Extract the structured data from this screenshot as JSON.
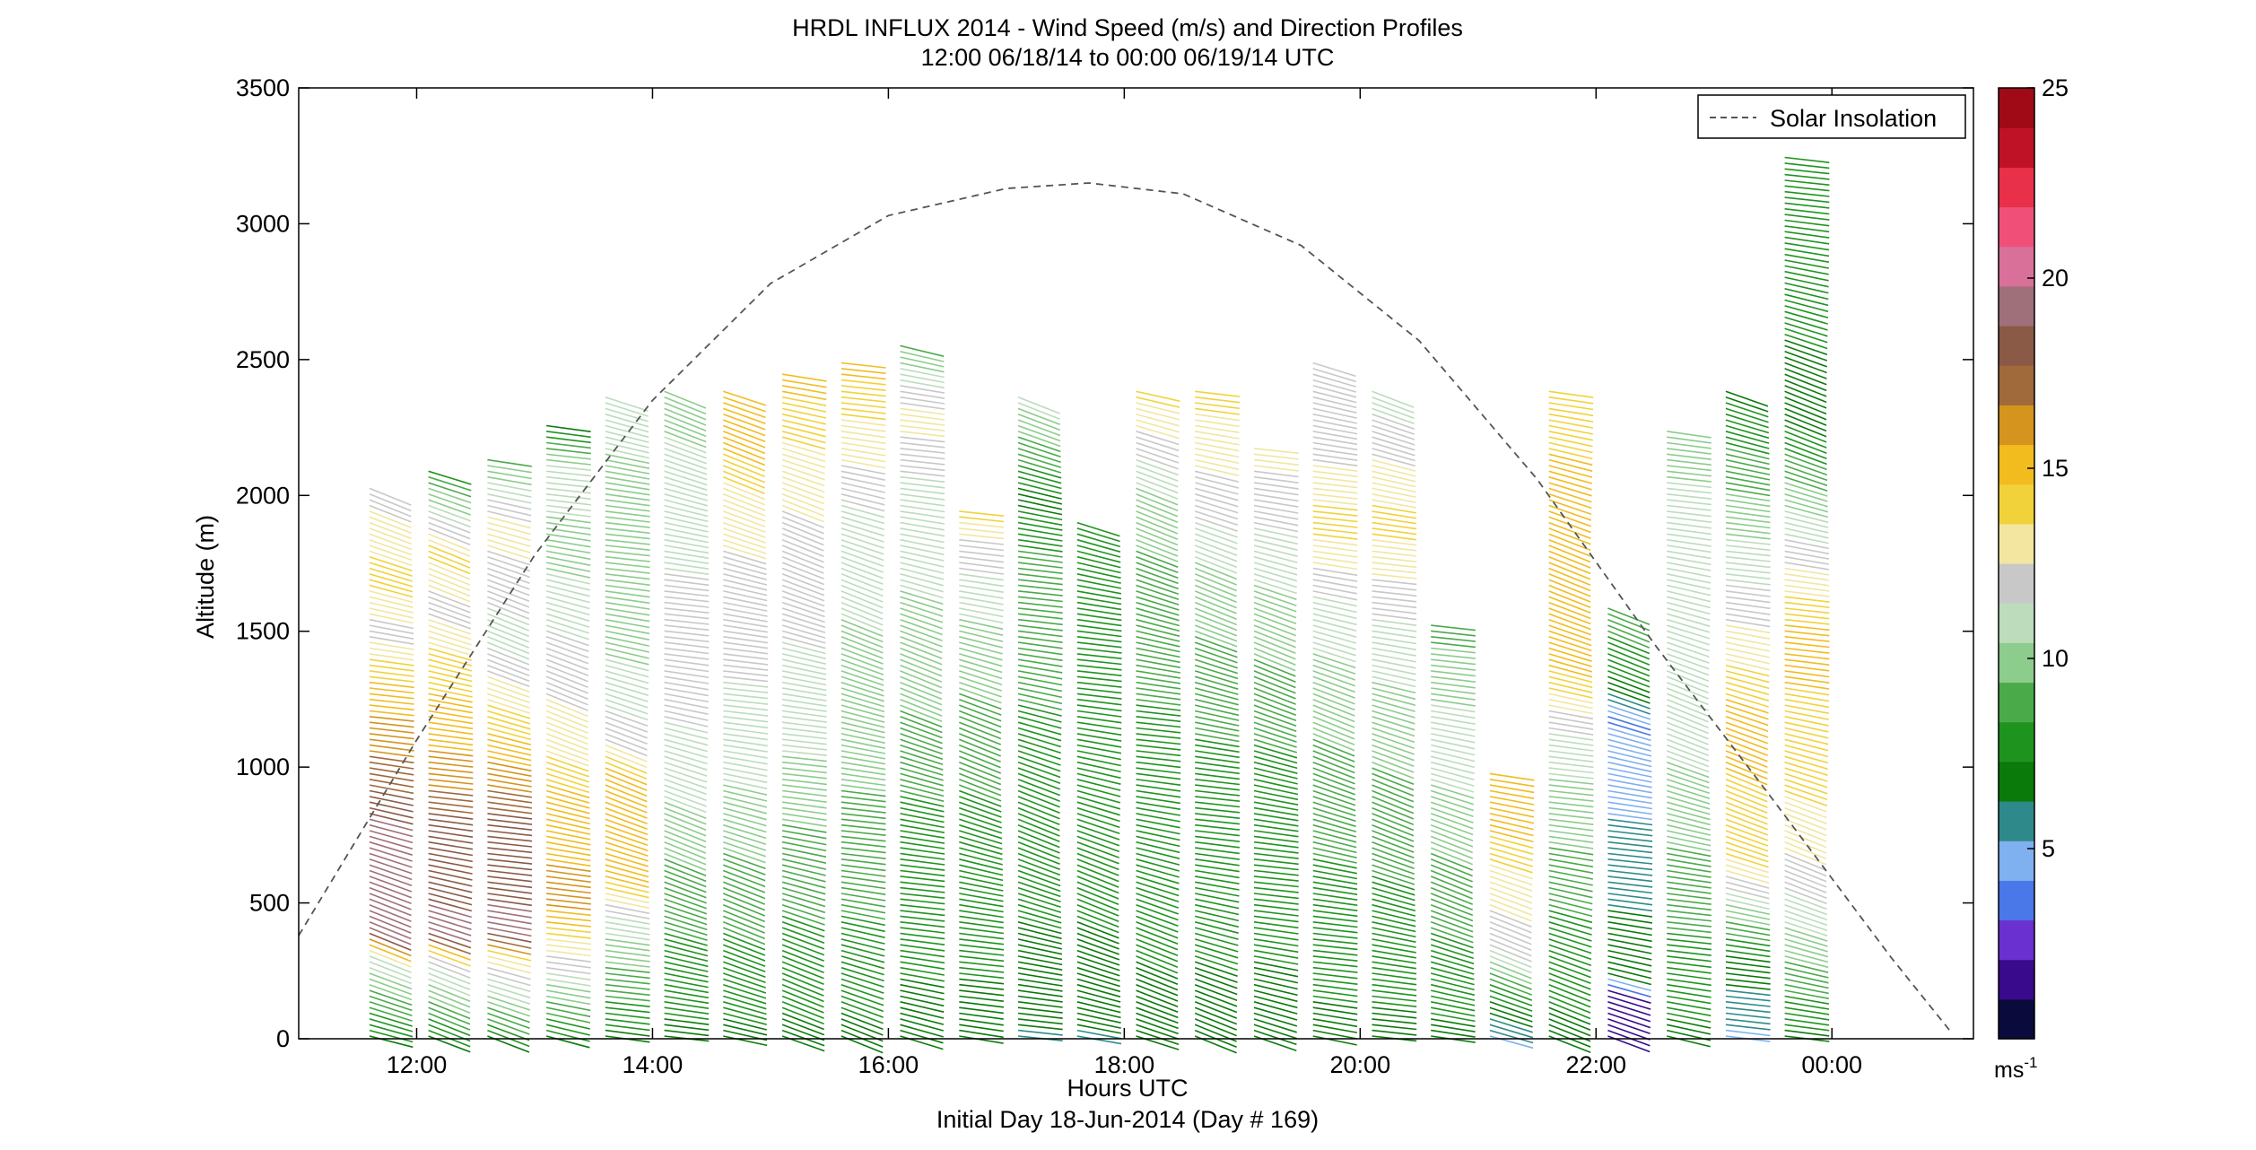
{
  "chart_data": {
    "type": "other",
    "title": "HRDL INFLUX 2014 - Wind Speed (m/s) and Direction Profiles",
    "subtitle": "12:00 06/18/14 to 00:00 06/19/14  UTC",
    "xlabel": "Hours UTC",
    "xlabel2": "Initial Day 18-Jun-2014 (Day # 169)",
    "ylabel": "Altitude (m)",
    "xlim": [
      11.0,
      25.2
    ],
    "ylim": [
      0,
      3500
    ],
    "x_ticks": [
      12,
      14,
      16,
      18,
      20,
      22,
      24
    ],
    "x_tick_labels": [
      "12:00",
      "14:00",
      "16:00",
      "18:00",
      "20:00",
      "22:00",
      "00:00"
    ],
    "y_ticks": [
      0,
      500,
      1000,
      1500,
      2000,
      2500,
      3000,
      3500
    ],
    "y_tick_labels": [
      "0",
      "500",
      "1000",
      "1500",
      "2000",
      "2500",
      "3000",
      "3500"
    ],
    "legend": {
      "entries": [
        "Solar Insolation"
      ],
      "placement": "top-right"
    },
    "colorbar": {
      "range": [
        0,
        25
      ],
      "ticks": [
        5,
        10,
        15,
        20,
        25
      ],
      "tick_labels": [
        "5",
        "10",
        "15",
        "20",
        "25"
      ],
      "unit_label": "ms",
      "unit_exponent": "-1",
      "colors": [
        "#0a0a3c",
        "#3a0a8c",
        "#6a30d0",
        "#4a78e8",
        "#7fb0f0",
        "#2e8a8a",
        "#0a7a0a",
        "#1e941e",
        "#4aaa4a",
        "#8ccc8c",
        "#bcdcbc",
        "#c8c8c8",
        "#f2e6a0",
        "#f2d23a",
        "#f2bc1e",
        "#d4941e",
        "#a06a3a",
        "#8a5a46",
        "#a0707a",
        "#d8709a",
        "#f05078",
        "#e8304a",
        "#c01226",
        "#a00a16"
      ]
    },
    "series": [
      {
        "name": "Solar Insolation",
        "style": "dashed",
        "color": "#555555",
        "x": [
          11.0,
          12.0,
          13.0,
          14.0,
          15.0,
          16.0,
          17.0,
          17.7,
          18.5,
          19.5,
          20.5,
          21.5,
          22.5,
          23.5,
          24.5,
          25.0
        ],
        "y": [
          380,
          1100,
          1780,
          2350,
          2780,
          3030,
          3130,
          3150,
          3110,
          2920,
          2570,
          2060,
          1450,
          880,
          300,
          30
        ]
      }
    ],
    "profiles": [
      {
        "t": 11.6,
        "top": 2030,
        "speed_by_level": [
          [
            0,
            7
          ],
          [
            300,
            11
          ],
          [
            400,
            19
          ],
          [
            800,
            19
          ],
          [
            1000,
            17
          ],
          [
            1300,
            15
          ],
          [
            1500,
            12
          ],
          [
            1700,
            14
          ],
          [
            2030,
            12
          ]
        ]
      },
      {
        "t": 12.1,
        "top": 2100,
        "speed_by_level": [
          [
            0,
            7
          ],
          [
            300,
            12
          ],
          [
            400,
            19
          ],
          [
            800,
            18
          ],
          [
            1000,
            16
          ],
          [
            1400,
            14
          ],
          [
            1600,
            12
          ],
          [
            1800,
            14
          ],
          [
            2100,
            8
          ]
        ]
      },
      {
        "t": 12.6,
        "top": 2150,
        "speed_by_level": [
          [
            0,
            7
          ],
          [
            300,
            13
          ],
          [
            400,
            19
          ],
          [
            800,
            18
          ],
          [
            1100,
            15
          ],
          [
            1300,
            13
          ],
          [
            1500,
            11
          ],
          [
            1900,
            13
          ],
          [
            2150,
            9
          ]
        ]
      },
      {
        "t": 13.1,
        "top": 2260,
        "speed_by_level": [
          [
            0,
            7
          ],
          [
            350,
            13
          ],
          [
            500,
            16
          ],
          [
            900,
            15
          ],
          [
            1100,
            13
          ],
          [
            1400,
            12
          ],
          [
            1800,
            10
          ],
          [
            2100,
            11
          ],
          [
            2260,
            7
          ]
        ]
      },
      {
        "t": 13.6,
        "top": 2380,
        "speed_by_level": [
          [
            0,
            7
          ],
          [
            450,
            11
          ],
          [
            600,
            15
          ],
          [
            1000,
            15
          ],
          [
            1100,
            12
          ],
          [
            1500,
            10
          ],
          [
            2000,
            10
          ],
          [
            2380,
            11
          ]
        ]
      },
      {
        "t": 14.1,
        "top": 2390,
        "speed_by_level": [
          [
            0,
            7
          ],
          [
            600,
            9
          ],
          [
            1000,
            11
          ],
          [
            1400,
            12
          ],
          [
            2000,
            11
          ],
          [
            2390,
            10
          ]
        ]
      },
      {
        "t": 14.6,
        "top": 2400,
        "speed_by_level": [
          [
            0,
            7
          ],
          [
            600,
            9
          ],
          [
            1100,
            11
          ],
          [
            1600,
            12
          ],
          [
            2000,
            13
          ],
          [
            2200,
            15
          ],
          [
            2400,
            15
          ]
        ]
      },
      {
        "t": 15.1,
        "top": 2450,
        "speed_by_level": [
          [
            0,
            7
          ],
          [
            700,
            9
          ],
          [
            1200,
            11
          ],
          [
            1800,
            12
          ],
          [
            2100,
            13
          ],
          [
            2450,
            15
          ]
        ]
      },
      {
        "t": 15.6,
        "top": 2500,
        "speed_by_level": [
          [
            0,
            7
          ],
          [
            700,
            9
          ],
          [
            1300,
            10
          ],
          [
            1900,
            11
          ],
          [
            2200,
            13
          ],
          [
            2500,
            15
          ]
        ]
      },
      {
        "t": 16.1,
        "top": 2570,
        "speed_by_level": [
          [
            0,
            7
          ],
          [
            800,
            8
          ],
          [
            1400,
            10
          ],
          [
            2000,
            11
          ],
          [
            2300,
            13
          ],
          [
            2570,
            9
          ]
        ]
      },
      {
        "t": 16.6,
        "top": 1950,
        "speed_by_level": [
          [
            0,
            7
          ],
          [
            800,
            8
          ],
          [
            1500,
            10
          ],
          [
            1800,
            12
          ],
          [
            1950,
            14
          ]
        ]
      },
      {
        "t": 17.1,
        "top": 2380,
        "speed_by_level": [
          [
            0,
            6
          ],
          [
            200,
            7
          ],
          [
            1000,
            8
          ],
          [
            1700,
            9
          ],
          [
            2000,
            7
          ],
          [
            2380,
            11
          ]
        ]
      },
      {
        "t": 17.6,
        "top": 1920,
        "speed_by_level": [
          [
            0,
            6
          ],
          [
            200,
            7
          ],
          [
            1000,
            8
          ],
          [
            1920,
            8
          ]
        ]
      },
      {
        "t": 18.1,
        "top": 2390,
        "speed_by_level": [
          [
            0,
            7
          ],
          [
            1000,
            8
          ],
          [
            1700,
            9
          ],
          [
            2000,
            10
          ],
          [
            2390,
            14
          ]
        ]
      },
      {
        "t": 18.6,
        "top": 2400,
        "speed_by_level": [
          [
            0,
            7
          ],
          [
            1000,
            8
          ],
          [
            1700,
            10
          ],
          [
            2000,
            12
          ],
          [
            2400,
            14
          ]
        ]
      },
      {
        "t": 19.1,
        "top": 2180,
        "speed_by_level": [
          [
            0,
            7
          ],
          [
            1000,
            8
          ],
          [
            1600,
            10
          ],
          [
            2000,
            12
          ],
          [
            2180,
            13
          ]
        ]
      },
      {
        "t": 19.6,
        "top": 2500,
        "speed_by_level": [
          [
            0,
            7
          ],
          [
            1000,
            9
          ],
          [
            1600,
            11
          ],
          [
            1900,
            14
          ],
          [
            2200,
            12
          ],
          [
            2500,
            12
          ]
        ]
      },
      {
        "t": 20.1,
        "top": 2390,
        "speed_by_level": [
          [
            0,
            7
          ],
          [
            900,
            9
          ],
          [
            1500,
            11
          ],
          [
            1900,
            14
          ],
          [
            2390,
            11
          ]
        ]
      },
      {
        "t": 20.6,
        "top": 1540,
        "speed_by_level": [
          [
            0,
            7
          ],
          [
            600,
            9
          ],
          [
            1100,
            11
          ],
          [
            1540,
            9
          ]
        ]
      },
      {
        "t": 21.1,
        "top": 980,
        "speed_by_level": [
          [
            0,
            5
          ],
          [
            200,
            8
          ],
          [
            350,
            12
          ],
          [
            600,
            13
          ],
          [
            800,
            15
          ],
          [
            980,
            15
          ]
        ]
      },
      {
        "t": 21.6,
        "top": 2390,
        "speed_by_level": [
          [
            0,
            7
          ],
          [
            400,
            8
          ],
          [
            1100,
            11
          ],
          [
            1400,
            15
          ],
          [
            2000,
            15
          ],
          [
            2390,
            14
          ]
        ]
      },
      {
        "t": 22.1,
        "top": 1590,
        "speed_by_level": [
          [
            0,
            2
          ],
          [
            180,
            2
          ],
          [
            250,
            7
          ],
          [
            1200,
            4
          ],
          [
            1300,
            7
          ],
          [
            1590,
            9
          ]
        ]
      },
      {
        "t": 22.6,
        "top": 2250,
        "speed_by_level": [
          [
            0,
            7
          ],
          [
            600,
            9
          ],
          [
            1200,
            11
          ],
          [
            1800,
            11
          ],
          [
            2250,
            10
          ]
        ]
      },
      {
        "t": 23.1,
        "top": 2400,
        "speed_by_level": [
          [
            0,
            5
          ],
          [
            300,
            7
          ],
          [
            700,
            14
          ],
          [
            1200,
            15
          ],
          [
            1600,
            12
          ],
          [
            2400,
            7
          ]
        ]
      },
      {
        "t": 23.6,
        "top": 3260,
        "speed_by_level": [
          [
            0,
            7
          ],
          [
            600,
            12
          ],
          [
            1000,
            14
          ],
          [
            1500,
            15
          ],
          [
            2000,
            10
          ],
          [
            2300,
            7
          ],
          [
            3260,
            8
          ]
        ]
      }
    ]
  }
}
